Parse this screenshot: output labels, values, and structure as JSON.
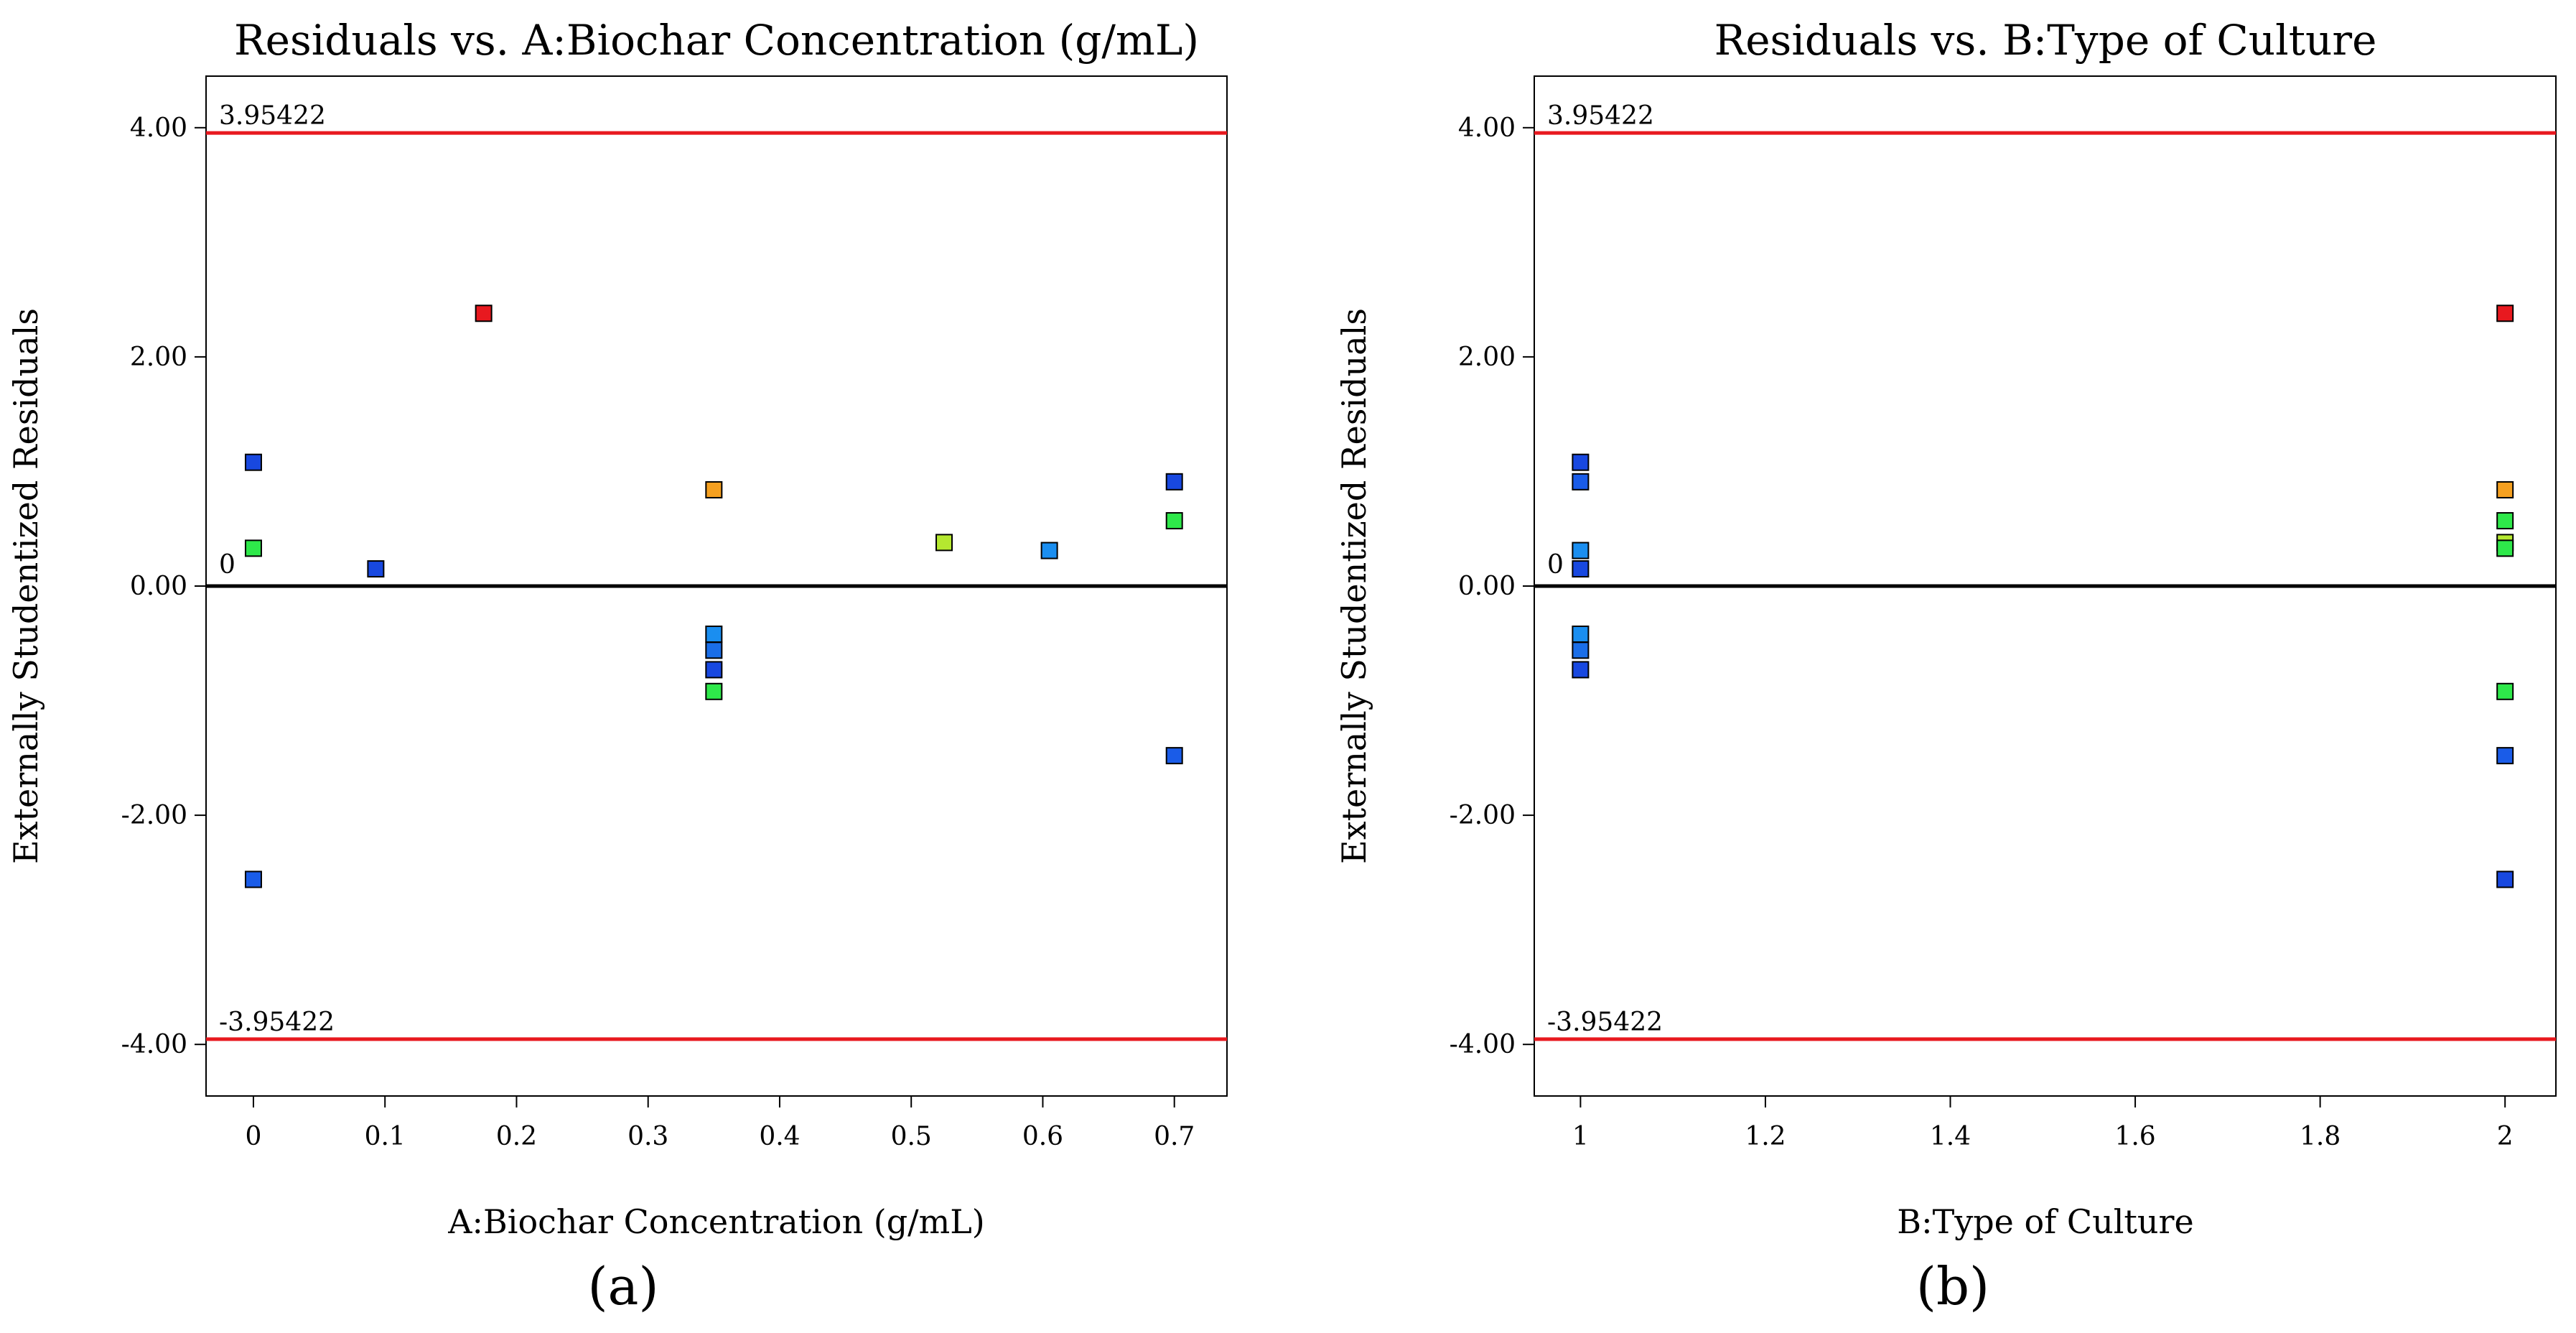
{
  "chart_data": [
    {
      "type": "scatter",
      "panel_label": "(a)",
      "title": "Residuals vs. A:Biochar Concentration (g/mL)",
      "xlabel": "A:Biochar Concentration (g/mL)",
      "ylabel": "Externally Studentized Residuals",
      "xlim": [
        -0.036,
        0.74
      ],
      "ylim": [
        -4.45,
        4.45
      ],
      "xticks": [
        0,
        0.1,
        0.2,
        0.3,
        0.4,
        0.5,
        0.6,
        0.7
      ],
      "xtick_labels": [
        "0",
        "0.1",
        "0.2",
        "0.3",
        "0.4",
        "0.5",
        "0.6",
        "0.7"
      ],
      "yticks": [
        4,
        2,
        0,
        -2,
        -4
      ],
      "ytick_labels": [
        "4.00",
        "2.00",
        "0.00",
        "-2.00",
        "-4.00"
      ],
      "ref_lines": [
        {
          "y": 3.95422,
          "label": "3.95422",
          "color": "#e8191f"
        },
        {
          "y": 0,
          "label": "0",
          "color": "#000000"
        },
        {
          "y": -3.95422,
          "label": "-3.95422",
          "color": "#e8191f"
        }
      ],
      "points": [
        {
          "x": 0,
          "y": 1.08,
          "color": "#1848e0"
        },
        {
          "x": 0,
          "y": 0.33,
          "color": "#2ee84a"
        },
        {
          "x": 0,
          "y": -2.56,
          "color": "#1a5ce8"
        },
        {
          "x": 0.093,
          "y": 0.15,
          "color": "#1848e0"
        },
        {
          "x": 0.175,
          "y": 2.38,
          "color": "#e8191f"
        },
        {
          "x": 0.35,
          "y": 0.84,
          "color": "#f5a020"
        },
        {
          "x": 0.35,
          "y": -0.42,
          "color": "#1a8ef0"
        },
        {
          "x": 0.35,
          "y": -0.56,
          "color": "#1a6ee8"
        },
        {
          "x": 0.35,
          "y": -0.73,
          "color": "#1848e0"
        },
        {
          "x": 0.35,
          "y": -0.92,
          "color": "#2ee84a"
        },
        {
          "x": 0.525,
          "y": 0.38,
          "color": "#b5e830"
        },
        {
          "x": 0.605,
          "y": 0.31,
          "color": "#1a8ef0"
        },
        {
          "x": 0.7,
          "y": 0.91,
          "color": "#1848e0"
        },
        {
          "x": 0.7,
          "y": 0.57,
          "color": "#2ee84a"
        },
        {
          "x": 0.7,
          "y": -1.48,
          "color": "#1a5ce8"
        }
      ]
    },
    {
      "type": "scatter",
      "panel_label": "(b)",
      "title": "Residuals vs. B:Type of Culture",
      "xlabel": "B:Type of Culture",
      "ylabel": "Externally Studentized Residuals",
      "xlim": [
        0.95,
        2.055
      ],
      "ylim": [
        -4.45,
        4.45
      ],
      "xticks": [
        1,
        1.2,
        1.4,
        1.6,
        1.8,
        2
      ],
      "xtick_labels": [
        "1",
        "1.2",
        "1.4",
        "1.6",
        "1.8",
        "2"
      ],
      "yticks": [
        4,
        2,
        0,
        -2,
        -4
      ],
      "ytick_labels": [
        "4.00",
        "2.00",
        "0.00",
        "-2.00",
        "-4.00"
      ],
      "ref_lines": [
        {
          "y": 3.95422,
          "label": "3.95422",
          "color": "#e8191f"
        },
        {
          "y": 0,
          "label": "0",
          "color": "#000000"
        },
        {
          "y": -3.95422,
          "label": "-3.95422",
          "color": "#e8191f"
        }
      ],
      "points": [
        {
          "x": 1,
          "y": 1.08,
          "color": "#1848e0"
        },
        {
          "x": 1,
          "y": 0.91,
          "color": "#1a5ce8"
        },
        {
          "x": 1,
          "y": 0.31,
          "color": "#1a8ef0"
        },
        {
          "x": 1,
          "y": 0.15,
          "color": "#1848e0"
        },
        {
          "x": 1,
          "y": -0.42,
          "color": "#1a8ef0"
        },
        {
          "x": 1,
          "y": -0.56,
          "color": "#1a6ee8"
        },
        {
          "x": 1,
          "y": -0.73,
          "color": "#1848e0"
        },
        {
          "x": 2,
          "y": 2.38,
          "color": "#e8191f"
        },
        {
          "x": 2,
          "y": 0.84,
          "color": "#f5a020"
        },
        {
          "x": 2,
          "y": 0.57,
          "color": "#2ee84a"
        },
        {
          "x": 2,
          "y": 0.38,
          "color": "#b5e830"
        },
        {
          "x": 2,
          "y": 0.33,
          "color": "#2ee84a"
        },
        {
          "x": 2,
          "y": -0.92,
          "color": "#2ee84a"
        },
        {
          "x": 2,
          "y": -1.48,
          "color": "#1a5ce8"
        },
        {
          "x": 2,
          "y": -2.56,
          "color": "#1848e0"
        }
      ]
    }
  ]
}
